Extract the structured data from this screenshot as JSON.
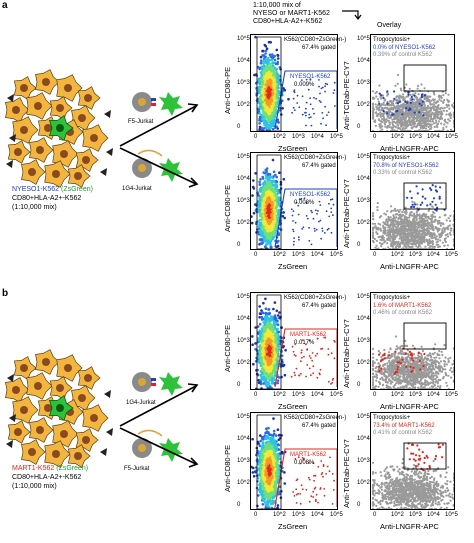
{
  "header": {
    "mix_line1": "1:10,000 mix of",
    "mix_line2": "NYESO or MART1-K562",
    "mix_line3": "CD80+HLA-A2+-K562",
    "overlay_title": "Overlay"
  },
  "panel_a": {
    "letter": "a",
    "target_label": "NYESO1-K562",
    "target_suffix": "(ZsGreen)",
    "bystander_label": "CD80+HLA-A2+-K562",
    "ratio": "(1:10,000 mix)",
    "cell_top": "F5-Jurkat",
    "cell_bottom": "1G4-Jurkat",
    "accent": "#1f3fc8",
    "rows": [
      {
        "gate_name": "K562(CD80+ZsGreen-)",
        "gated": "67.4% gated",
        "target_gate": "NYESO1-K562",
        "target_pct": "0.009%",
        "trogo_title": "Trogocytosis+",
        "trogo_line1": "0.0% of NYESO1-K562",
        "trogo_line2": "0.39% of control K562"
      },
      {
        "gate_name": "K562(CD80+ZsGreen-)",
        "gated": "67.4% gated",
        "target_gate": "NYESO1-K562",
        "target_pct": "0.008%",
        "trogo_title": "Trogocytosis+",
        "trogo_line1": "70.8% of NYESO1-K562",
        "trogo_line2": "0.33% of control K562"
      }
    ]
  },
  "panel_b": {
    "letter": "b",
    "target_label": "MART1-K562",
    "target_suffix": "(ZsGreen)",
    "bystander_label": "CD80+HLA-A2+-K562",
    "ratio": "(1:10,000 mix)",
    "cell_top": "1G4-Jurkat",
    "cell_bottom": "F5-Jurkat",
    "accent": "#e0241c",
    "rows": [
      {
        "gate_name": "K562(CD80+ZsGreen-)",
        "gated": "67.4% gated",
        "target_gate": "MART1-K562",
        "target_pct": "0.017%",
        "trogo_title": "Trogocytosis+",
        "trogo_line1": "1.6% of MART1-K562",
        "trogo_line2": "0.46% of control K562"
      },
      {
        "gate_name": "K562(CD80+ZsGreen-)",
        "gated": "67.4% gated",
        "target_gate": "MART1-K562",
        "target_pct": "0.008%",
        "trogo_title": "Trogocytosis+",
        "trogo_line1": "73.4% of MART1-K562",
        "trogo_line2": "0.41% of control K562"
      }
    ]
  },
  "axes": {
    "flow_y": "Anti-CD80-PE",
    "flow_x": "ZsGreen",
    "overlay_y": "Anti-TCRab-PE-CY7",
    "overlay_x": "Anti-LNGFR-APC",
    "overlay_x_last": "Anti-LNGFR-APC",
    "ticks_y": [
      "10^5",
      "10^4",
      "10^3",
      "10^2",
      "0"
    ],
    "ticks_x": [
      "0",
      "10^2",
      "10^3",
      "10^4",
      "10^5"
    ]
  }
}
